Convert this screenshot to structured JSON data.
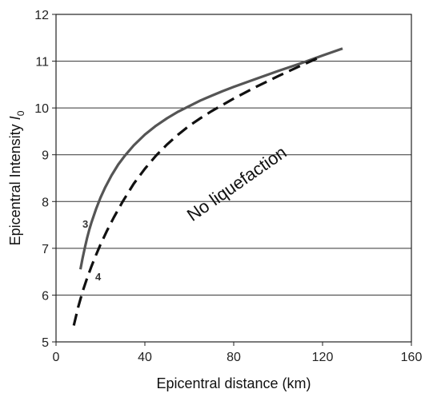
{
  "chart_data": {
    "type": "line",
    "title": "",
    "xlabel": "Epicentral distance (km)",
    "ylabel_main": "Epicentral Intensity ",
    "ylabel_italic": "I",
    "ylabel_sub": "0",
    "xlim": [
      0,
      160
    ],
    "ylim": [
      5,
      12
    ],
    "xticks": [
      0,
      40,
      80,
      120,
      160
    ],
    "yticks": [
      5,
      6,
      7,
      8,
      9,
      10,
      11,
      12
    ],
    "grid": "horizontal",
    "annotation": "No liquefaction",
    "series": [
      {
        "name": "3",
        "style": "solid",
        "color": "#555555",
        "x": [
          11,
          12,
          13,
          14,
          15,
          16,
          18,
          20,
          22,
          25,
          28,
          31,
          35,
          40,
          45,
          50,
          55,
          60,
          65,
          70,
          75,
          80,
          90,
          100,
          110,
          120,
          129
        ],
        "y": [
          6.55,
          6.8,
          7.02,
          7.22,
          7.4,
          7.56,
          7.84,
          8.08,
          8.29,
          8.56,
          8.79,
          8.98,
          9.2,
          9.43,
          9.62,
          9.78,
          9.92,
          10.04,
          10.16,
          10.26,
          10.36,
          10.45,
          10.62,
          10.79,
          10.95,
          11.12,
          11.27
        ]
      },
      {
        "name": "4",
        "style": "dashed",
        "color": "#111111",
        "x": [
          8,
          10,
          12,
          14,
          16,
          18,
          20,
          23,
          26,
          30,
          35,
          40,
          45,
          50,
          55,
          60,
          65,
          70,
          80,
          90,
          100,
          110,
          118
        ],
        "y": [
          5.35,
          5.75,
          6.08,
          6.36,
          6.62,
          6.86,
          7.08,
          7.38,
          7.66,
          8.0,
          8.38,
          8.7,
          8.98,
          9.22,
          9.43,
          9.62,
          9.78,
          9.93,
          10.2,
          10.45,
          10.68,
          10.9,
          11.07
        ]
      }
    ]
  }
}
